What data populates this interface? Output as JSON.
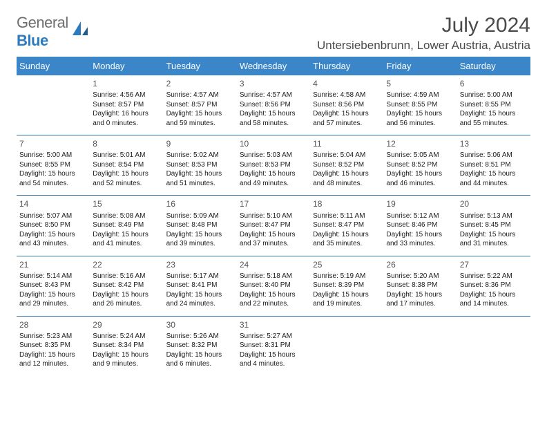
{
  "logo": {
    "text_gray": "General",
    "text_blue": "Blue"
  },
  "title": "July 2024",
  "location": "Untersiebenbrunn, Lower Austria, Austria",
  "colors": {
    "header_bg": "#3a86c8",
    "header_fg": "#ffffff",
    "row_divider": "#2f6fa8",
    "daynum": "#555555",
    "body_text": "#1a1a1a",
    "page_bg": "#ffffff",
    "logo_gray": "#6e6e6e",
    "logo_blue": "#2c7bbf"
  },
  "day_headers": [
    "Sunday",
    "Monday",
    "Tuesday",
    "Wednesday",
    "Thursday",
    "Friday",
    "Saturday"
  ],
  "weeks": [
    [
      null,
      {
        "n": "1",
        "sr": "4:56 AM",
        "ss": "8:57 PM",
        "dl": "16 hours and 0 minutes."
      },
      {
        "n": "2",
        "sr": "4:57 AM",
        "ss": "8:57 PM",
        "dl": "15 hours and 59 minutes."
      },
      {
        "n": "3",
        "sr": "4:57 AM",
        "ss": "8:56 PM",
        "dl": "15 hours and 58 minutes."
      },
      {
        "n": "4",
        "sr": "4:58 AM",
        "ss": "8:56 PM",
        "dl": "15 hours and 57 minutes."
      },
      {
        "n": "5",
        "sr": "4:59 AM",
        "ss": "8:55 PM",
        "dl": "15 hours and 56 minutes."
      },
      {
        "n": "6",
        "sr": "5:00 AM",
        "ss": "8:55 PM",
        "dl": "15 hours and 55 minutes."
      }
    ],
    [
      {
        "n": "7",
        "sr": "5:00 AM",
        "ss": "8:55 PM",
        "dl": "15 hours and 54 minutes."
      },
      {
        "n": "8",
        "sr": "5:01 AM",
        "ss": "8:54 PM",
        "dl": "15 hours and 52 minutes."
      },
      {
        "n": "9",
        "sr": "5:02 AM",
        "ss": "8:53 PM",
        "dl": "15 hours and 51 minutes."
      },
      {
        "n": "10",
        "sr": "5:03 AM",
        "ss": "8:53 PM",
        "dl": "15 hours and 49 minutes."
      },
      {
        "n": "11",
        "sr": "5:04 AM",
        "ss": "8:52 PM",
        "dl": "15 hours and 48 minutes."
      },
      {
        "n": "12",
        "sr": "5:05 AM",
        "ss": "8:52 PM",
        "dl": "15 hours and 46 minutes."
      },
      {
        "n": "13",
        "sr": "5:06 AM",
        "ss": "8:51 PM",
        "dl": "15 hours and 44 minutes."
      }
    ],
    [
      {
        "n": "14",
        "sr": "5:07 AM",
        "ss": "8:50 PM",
        "dl": "15 hours and 43 minutes."
      },
      {
        "n": "15",
        "sr": "5:08 AM",
        "ss": "8:49 PM",
        "dl": "15 hours and 41 minutes."
      },
      {
        "n": "16",
        "sr": "5:09 AM",
        "ss": "8:48 PM",
        "dl": "15 hours and 39 minutes."
      },
      {
        "n": "17",
        "sr": "5:10 AM",
        "ss": "8:47 PM",
        "dl": "15 hours and 37 minutes."
      },
      {
        "n": "18",
        "sr": "5:11 AM",
        "ss": "8:47 PM",
        "dl": "15 hours and 35 minutes."
      },
      {
        "n": "19",
        "sr": "5:12 AM",
        "ss": "8:46 PM",
        "dl": "15 hours and 33 minutes."
      },
      {
        "n": "20",
        "sr": "5:13 AM",
        "ss": "8:45 PM",
        "dl": "15 hours and 31 minutes."
      }
    ],
    [
      {
        "n": "21",
        "sr": "5:14 AM",
        "ss": "8:43 PM",
        "dl": "15 hours and 29 minutes."
      },
      {
        "n": "22",
        "sr": "5:16 AM",
        "ss": "8:42 PM",
        "dl": "15 hours and 26 minutes."
      },
      {
        "n": "23",
        "sr": "5:17 AM",
        "ss": "8:41 PM",
        "dl": "15 hours and 24 minutes."
      },
      {
        "n": "24",
        "sr": "5:18 AM",
        "ss": "8:40 PM",
        "dl": "15 hours and 22 minutes."
      },
      {
        "n": "25",
        "sr": "5:19 AM",
        "ss": "8:39 PM",
        "dl": "15 hours and 19 minutes."
      },
      {
        "n": "26",
        "sr": "5:20 AM",
        "ss": "8:38 PM",
        "dl": "15 hours and 17 minutes."
      },
      {
        "n": "27",
        "sr": "5:22 AM",
        "ss": "8:36 PM",
        "dl": "15 hours and 14 minutes."
      }
    ],
    [
      {
        "n": "28",
        "sr": "5:23 AM",
        "ss": "8:35 PM",
        "dl": "15 hours and 12 minutes."
      },
      {
        "n": "29",
        "sr": "5:24 AM",
        "ss": "8:34 PM",
        "dl": "15 hours and 9 minutes."
      },
      {
        "n": "30",
        "sr": "5:26 AM",
        "ss": "8:32 PM",
        "dl": "15 hours and 6 minutes."
      },
      {
        "n": "31",
        "sr": "5:27 AM",
        "ss": "8:31 PM",
        "dl": "15 hours and 4 minutes."
      },
      null,
      null,
      null
    ]
  ],
  "labels": {
    "sunrise": "Sunrise: ",
    "sunset": "Sunset: ",
    "daylight": "Daylight: "
  }
}
